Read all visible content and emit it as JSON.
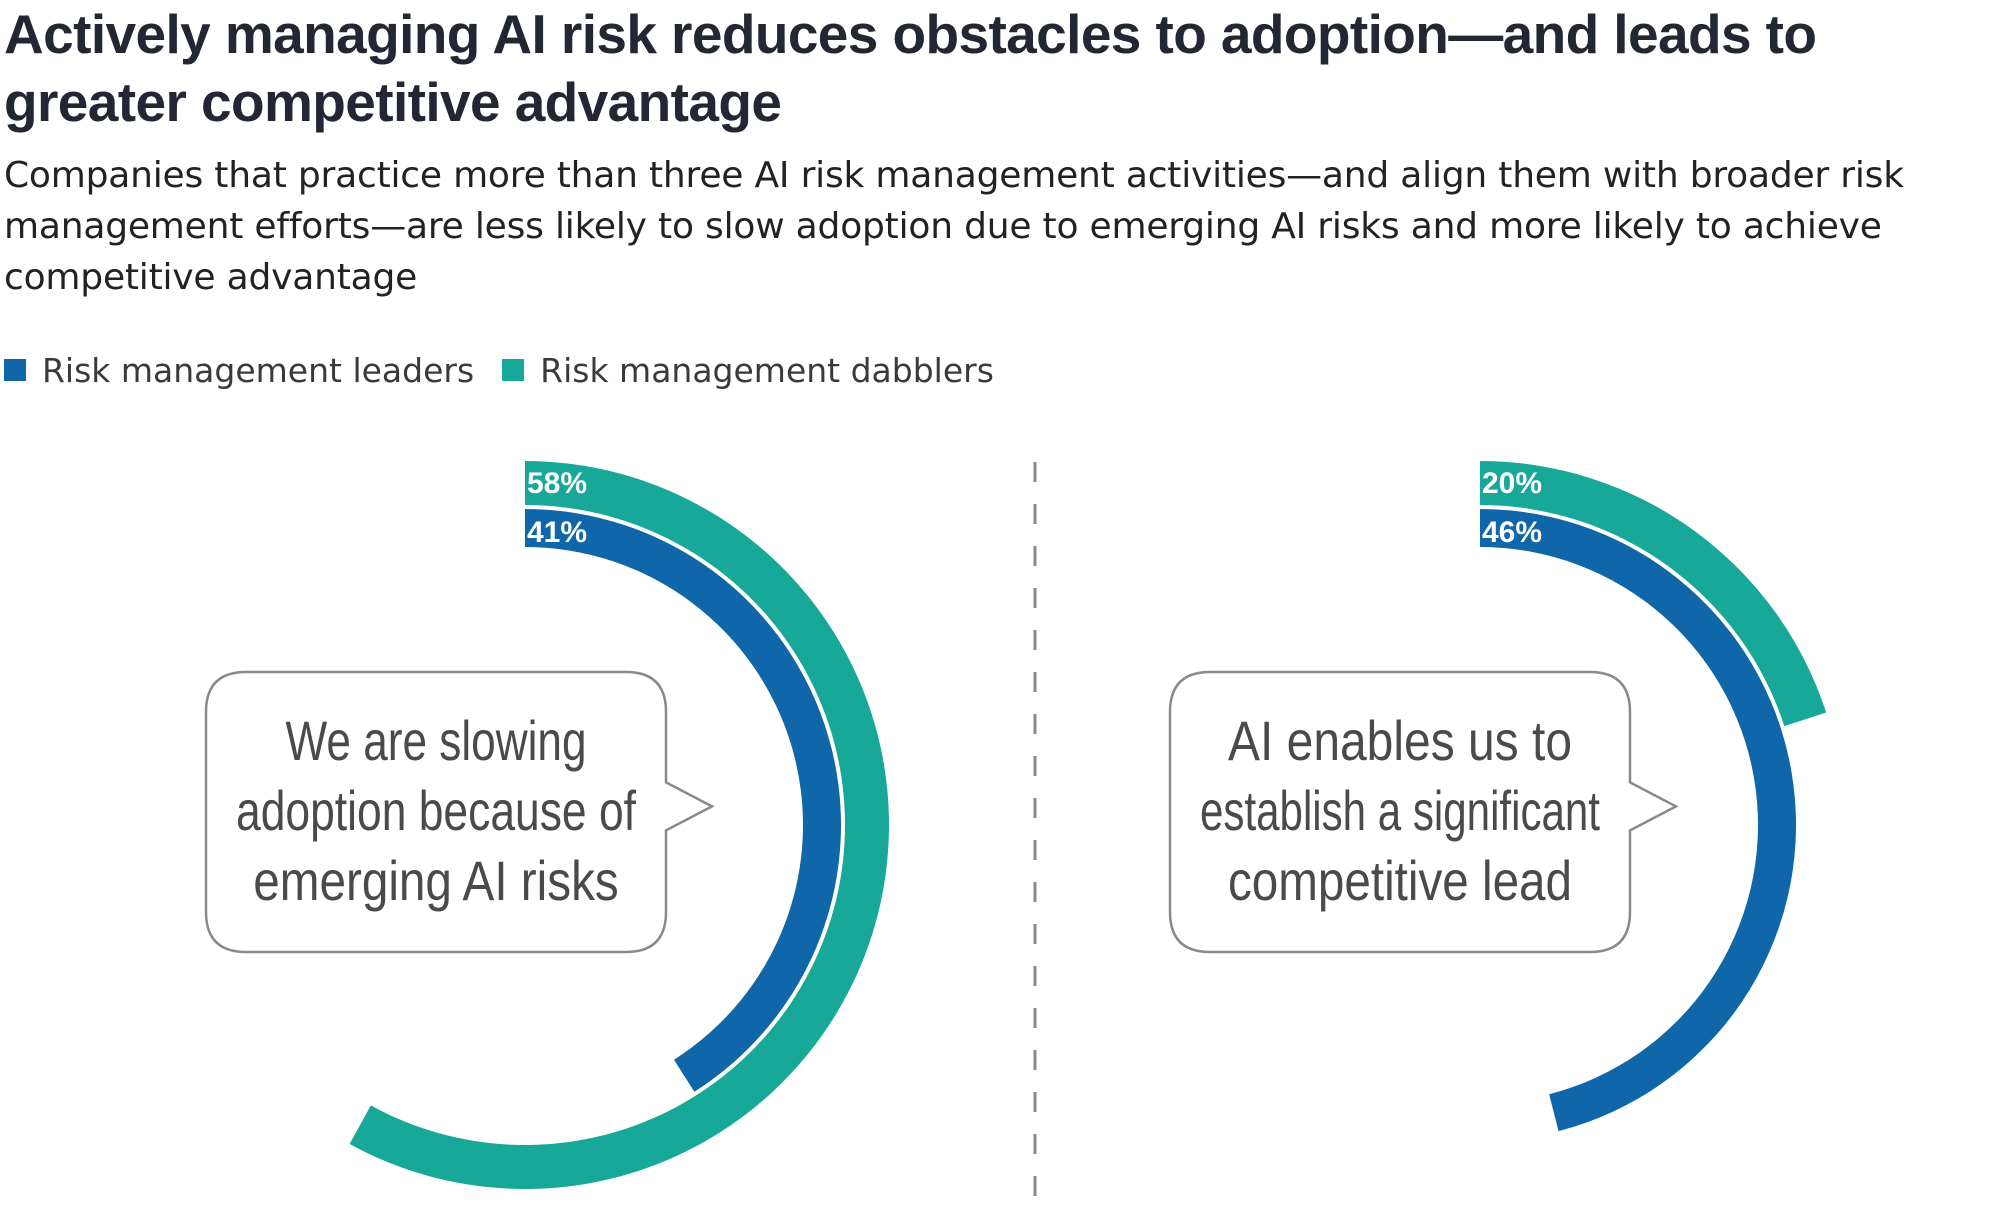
{
  "title": "Actively managing AI risk reduces obstacles to adoption—and leads to greater competitive advantage",
  "subtitle": "Companies that practice more than three AI risk management activities—and align them with broader risk management efforts—are less likely to slow adoption due to emerging AI risks and more likely to achieve competitive advantage",
  "legend": [
    {
      "label": "Risk management leaders",
      "color": "#0f66a8"
    },
    {
      "label": "Risk management dabblers",
      "color": "#18a89a"
    }
  ],
  "colors": {
    "leaders": "#0f66a8",
    "dabblers": "#18a89a",
    "divider": "#888888",
    "callout_border": "#8a8a8a"
  },
  "chart_data": [
    {
      "type": "radial-bar",
      "callout": [
        "We are slowing",
        "adoption because of",
        "emerging AI risks"
      ],
      "series": [
        {
          "name": "Risk management dabblers",
          "value": 58,
          "label": "58%"
        },
        {
          "name": "Risk management leaders",
          "value": 41,
          "label": "41%"
        }
      ],
      "unit": "%"
    },
    {
      "type": "radial-bar",
      "callout": [
        "AI enables us to",
        "establish a significant",
        "competitive lead"
      ],
      "series": [
        {
          "name": "Risk management dabblers",
          "value": 20,
          "label": "20%"
        },
        {
          "name": "Risk management leaders",
          "value": 46,
          "label": "46%"
        }
      ],
      "unit": "%"
    }
  ]
}
